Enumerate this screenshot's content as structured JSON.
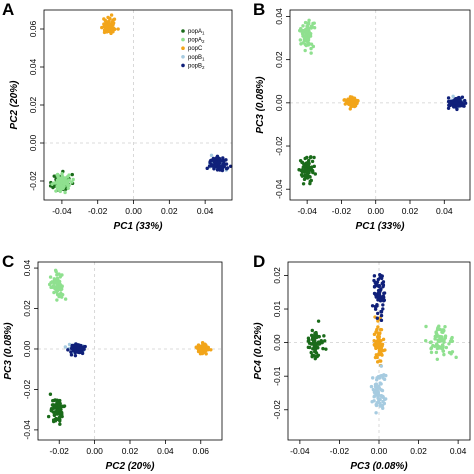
{
  "colors": {
    "popA1": "#1a6b1a",
    "popA2": "#8fe08f",
    "popC": "#f2a51a",
    "popB1": "#a6cbe0",
    "popB2": "#10207a"
  },
  "legend": {
    "items": [
      {
        "key": "popA1",
        "base": "popA",
        "sub": "1"
      },
      {
        "key": "popA2",
        "base": "popA",
        "sub": "2"
      },
      {
        "key": "popC",
        "base": "popC",
        "sub": ""
      },
      {
        "key": "popB1",
        "base": "popB",
        "sub": "1"
      },
      {
        "key": "popB2",
        "base": "popB",
        "sub": "2"
      }
    ]
  },
  "chart_data": [
    {
      "panel": "A",
      "type": "scatter",
      "xlabel": "PC1 (33%)",
      "ylabel": "PC2 (20%)",
      "xlim": [
        -0.05,
        0.055
      ],
      "ylim": [
        -0.03,
        0.07
      ],
      "xticks": [
        -0.04,
        -0.02,
        0.0,
        0.02,
        0.04
      ],
      "xticklabels": [
        "-0.04",
        "-0.02",
        "0.00",
        "0.02",
        "0.04"
      ],
      "yticks": [
        -0.02,
        0.0,
        0.02,
        0.04,
        0.06
      ],
      "yticklabels": [
        "-0.02",
        "0.00",
        "0.02",
        "0.04",
        "0.06"
      ],
      "legend": "top-right",
      "series": [
        {
          "key": "popA1",
          "cx": -0.04,
          "cy": -0.021,
          "sx": 0.0025,
          "sy": 0.0022
        },
        {
          "key": "popA2",
          "cx": -0.04,
          "cy": -0.021,
          "sx": 0.0024,
          "sy": 0.0022
        },
        {
          "key": "popC",
          "cx": -0.014,
          "cy": 0.061,
          "sx": 0.0018,
          "sy": 0.002
        },
        {
          "key": "popB1",
          "cx": 0.047,
          "cy": -0.011,
          "sx": 0.0022,
          "sy": 0.0018
        },
        {
          "key": "popB2",
          "cx": 0.047,
          "cy": -0.011,
          "sx": 0.0024,
          "sy": 0.0018
        }
      ]
    },
    {
      "panel": "B",
      "type": "scatter",
      "xlabel": "PC1 (33%)",
      "ylabel": "PC3 (0.08%)",
      "xlim": [
        -0.05,
        0.055
      ],
      "ylim": [
        -0.045,
        0.043
      ],
      "xticks": [
        -0.04,
        -0.02,
        0.0,
        0.02,
        0.04
      ],
      "xticklabels": [
        "-0.04",
        "-0.02",
        "0.00",
        "0.02",
        "0.04"
      ],
      "yticks": [
        -0.04,
        -0.02,
        0.0,
        0.02,
        0.04
      ],
      "yticklabels": [
        "-0.04",
        "-0.02",
        "0.00",
        "0.02",
        "0.04"
      ],
      "series": [
        {
          "key": "popA1",
          "cx": -0.04,
          "cy": -0.031,
          "sx": 0.0022,
          "sy": 0.003
        },
        {
          "key": "popA2",
          "cx": -0.04,
          "cy": 0.031,
          "sx": 0.0022,
          "sy": 0.003
        },
        {
          "key": "popC",
          "cx": -0.014,
          "cy": 0.0,
          "sx": 0.0018,
          "sy": 0.0012
        },
        {
          "key": "popB1",
          "cx": 0.047,
          "cy": 0.0,
          "sx": 0.0022,
          "sy": 0.0012
        },
        {
          "key": "popB2",
          "cx": 0.047,
          "cy": 0.0,
          "sx": 0.0024,
          "sy": 0.0012
        }
      ]
    },
    {
      "panel": "C",
      "type": "scatter",
      "xlabel": "PC2 (20%)",
      "ylabel": "PC3 (0.08%)",
      "xlim": [
        -0.032,
        0.072
      ],
      "ylim": [
        -0.045,
        0.043
      ],
      "xticks": [
        -0.02,
        0.0,
        0.02,
        0.04,
        0.06
      ],
      "xticklabels": [
        "-0.02",
        "0.00",
        "0.02",
        "0.04",
        "0.06"
      ],
      "yticks": [
        -0.04,
        -0.02,
        0.0,
        0.02,
        0.04
      ],
      "yticklabels": [
        "-0.04",
        "-0.02",
        "0.00",
        "0.02",
        "0.04"
      ],
      "series": [
        {
          "key": "popA1",
          "cx": -0.021,
          "cy": -0.031,
          "sx": 0.0018,
          "sy": 0.003
        },
        {
          "key": "popA2",
          "cx": -0.021,
          "cy": 0.031,
          "sx": 0.0018,
          "sy": 0.003
        },
        {
          "key": "popC",
          "cx": 0.061,
          "cy": 0.0,
          "sx": 0.0018,
          "sy": 0.0012
        },
        {
          "key": "popB1",
          "cx": -0.01,
          "cy": 0.0,
          "sx": 0.0018,
          "sy": 0.0012
        },
        {
          "key": "popB2",
          "cx": -0.01,
          "cy": 0.0,
          "sx": 0.0018,
          "sy": 0.0012
        }
      ]
    },
    {
      "panel": "D",
      "type": "scatter",
      "xlabel": "PC3 (0.08%)",
      "ylabel": "PC4 (0.02%)",
      "xlim": [
        -0.046,
        0.046
      ],
      "ylim": [
        -0.029,
        0.024
      ],
      "xticks": [
        -0.04,
        -0.02,
        0.0,
        0.02,
        0.04
      ],
      "xticklabels": [
        "-0.04",
        "-0.02",
        "0.00",
        "0.02",
        "0.04"
      ],
      "yticks": [
        -0.02,
        -0.01,
        0.0,
        0.01,
        0.02
      ],
      "yticklabels": [
        "-0.02",
        "-0.01",
        "0.00",
        "0.01",
        "0.02"
      ],
      "series": [
        {
          "key": "popA1",
          "cx": -0.032,
          "cy": 0.0,
          "sx": 0.002,
          "sy": 0.0025
        },
        {
          "key": "popA2",
          "cx": 0.031,
          "cy": 0.0,
          "sx": 0.0028,
          "sy": 0.0025
        },
        {
          "key": "popC",
          "cx": 0.0,
          "cy": 0.0,
          "sx": 0.0012,
          "sy": 0.003
        },
        {
          "key": "popB1",
          "cx": 0.0,
          "cy": -0.015,
          "sx": 0.0016,
          "sy": 0.003
        },
        {
          "key": "popB2",
          "cx": 0.0,
          "cy": 0.014,
          "sx": 0.0016,
          "sy": 0.003
        }
      ]
    }
  ]
}
